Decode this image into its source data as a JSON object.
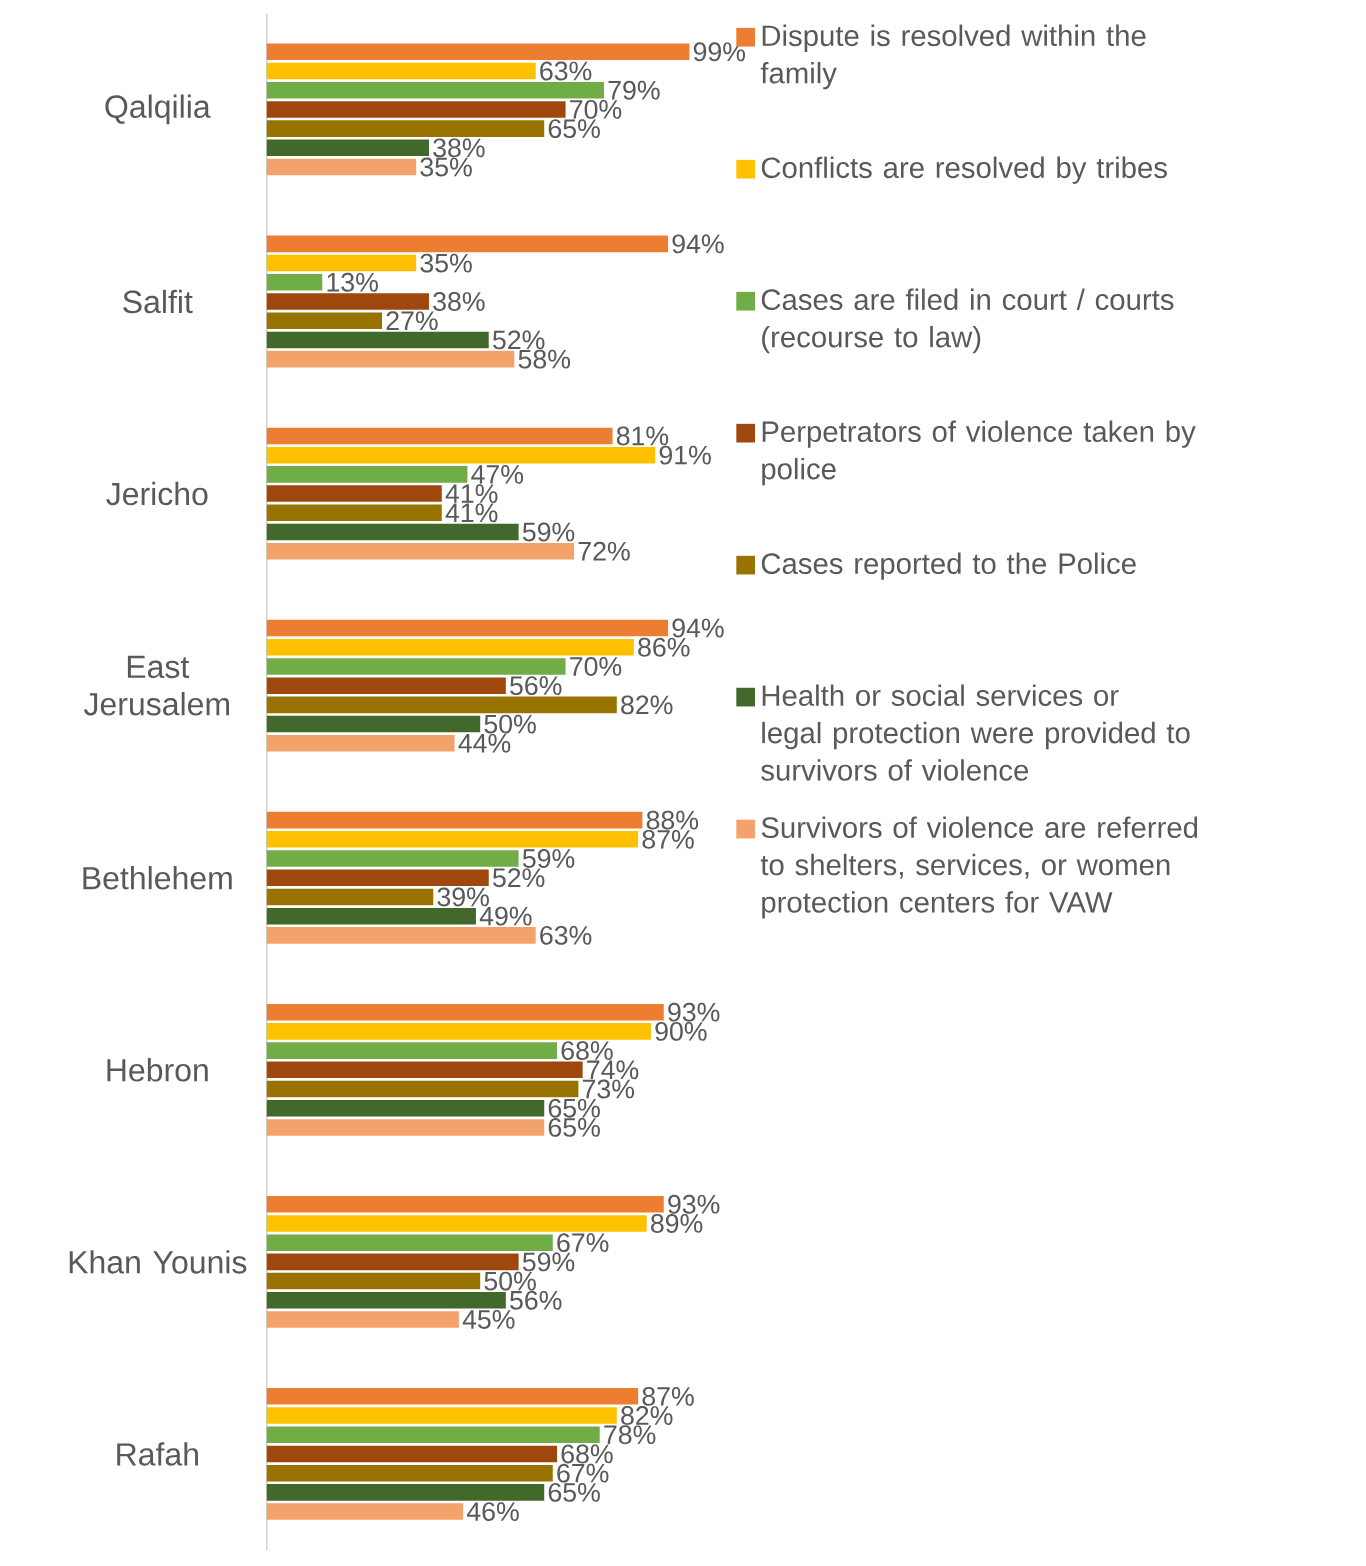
{
  "chart_data": {
    "type": "bar",
    "orientation": "horizontal",
    "categories": [
      "Qalqilia",
      "Salfit",
      "Jericho",
      "East Jerusalem",
      "Bethlehem",
      "Hebron",
      "Khan Younis",
      "Rafah"
    ],
    "xlim": [
      0,
      100
    ],
    "tick_labels": "y",
    "legend": "right",
    "series": [
      {
        "name": "Dispute is resolved within the family",
        "color": "#ed7d31",
        "values": [
          99,
          94,
          81,
          94,
          88,
          93,
          93,
          87
        ],
        "value_labels": [
          "99%",
          "94%",
          "81%",
          "94%",
          "88%",
          "93%",
          "93%",
          "87%"
        ]
      },
      {
        "name": "Conflicts are resolved by tribes",
        "color": "#ffc000",
        "values": [
          63,
          35,
          91,
          86,
          87,
          90,
          89,
          82
        ],
        "value_labels": [
          "63%",
          "35%",
          "91%",
          "86%",
          "87%",
          "90%",
          "89%",
          "82%"
        ]
      },
      {
        "name": "Cases are filed in court / courts (recourse to law)",
        "color": "#70ad47",
        "values": [
          79,
          13,
          47,
          70,
          59,
          68,
          67,
          78
        ],
        "value_labels": [
          "79%",
          "13%",
          "47%",
          "70%",
          "59%",
          "68%",
          "67%",
          "78%"
        ]
      },
      {
        "name": "Perpetrators of violence taken by police",
        "color": "#9e480e",
        "values": [
          70,
          38,
          41,
          56,
          52,
          74,
          59,
          68
        ],
        "value_labels": [
          "70%",
          "38%",
          "41%",
          "56%",
          "52%",
          "74%",
          "59%",
          "68%"
        ]
      },
      {
        "name": "Cases reported to the Police",
        "color": "#997300",
        "values": [
          65,
          27,
          41,
          82,
          39,
          73,
          50,
          67
        ],
        "value_labels": [
          "65%",
          "27%",
          "41%",
          "82%",
          "39%",
          "73%",
          "50%",
          "67%"
        ]
      },
      {
        "name": "Health or social services or legal protection were provided to survivors of violence",
        "color": "#43682b",
        "values": [
          38,
          52,
          59,
          50,
          49,
          65,
          56,
          65
        ],
        "value_labels": [
          "38%",
          "52%",
          "59%",
          "50%",
          "49%",
          "65%",
          "56%",
          "65%"
        ]
      },
      {
        "name": "Survivors of violence are referred to shelters, services, or women protection centers for VAW",
        "color": "#f4a26b",
        "values": [
          35,
          58,
          72,
          44,
          63,
          65,
          45,
          46
        ],
        "value_labels": [
          "35%",
          "58%",
          "72%",
          "44%",
          "63%",
          "65%",
          "45%",
          "46%"
        ]
      }
    ]
  }
}
